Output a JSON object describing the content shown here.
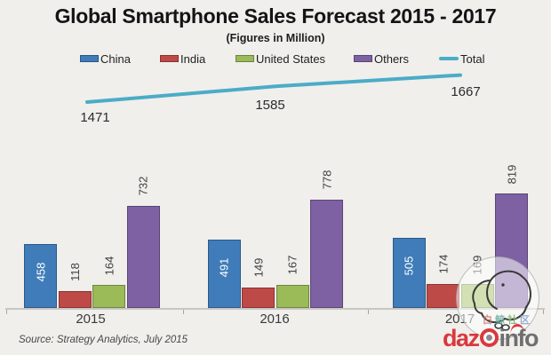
{
  "page": {
    "title": "Global Smartphone Sales Forecast 2015 - 2017",
    "subtitle": "(Figures in Million)",
    "source_note": "Source: Strategy Analytics, July 2015"
  },
  "chart_data": {
    "type": "bar",
    "title": "Global Smartphone Sales Forecast 2015 - 2017",
    "subtitle": "(Figures in Million)",
    "categories": [
      "2015",
      "2016",
      "2017"
    ],
    "series": [
      {
        "name": "China",
        "color": "#3f7cb9",
        "values": [
          458,
          491,
          505
        ]
      },
      {
        "name": "India",
        "color": "#be4a47",
        "values": [
          118,
          149,
          174
        ]
      },
      {
        "name": "United States",
        "color": "#9bba58",
        "values": [
          164,
          167,
          169
        ]
      },
      {
        "name": "Others",
        "color": "#7d61a3",
        "values": [
          732,
          778,
          819
        ]
      }
    ],
    "total_series": {
      "name": "Total",
      "type": "line",
      "color": "#4bacc6",
      "values": [
        1471,
        1585,
        1667
      ]
    },
    "legend_position": "top",
    "grid": false,
    "value_labels": "rotated-90",
    "source": "Source: Strategy Analytics, July 2015"
  },
  "watermark": {
    "community_text": "白鲸社区",
    "logo_prefix": "daz",
    "logo_suffix": "info"
  },
  "colors": {
    "background": "#f0efec",
    "axis": "#c9c7c4",
    "logo_red": "#d9393d",
    "logo_gray": "#6f6f6f"
  }
}
